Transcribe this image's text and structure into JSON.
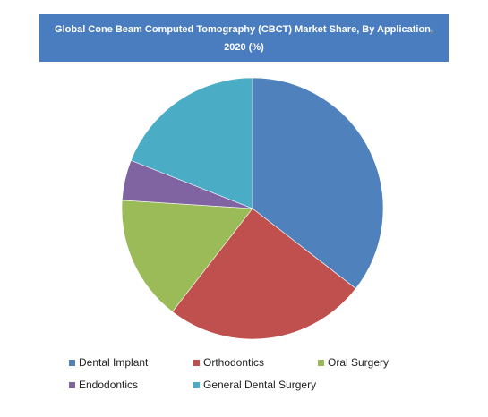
{
  "chart_data": {
    "type": "pie",
    "title": "Global Cone Beam Computed Tomography (CBCT) Market Share, By Application, 2020 (%)",
    "categories": [
      "Dental Implant",
      "Orthodontics",
      "Oral Surgery",
      "Endodontics",
      "General Dental Surgery"
    ],
    "values": [
      35.5,
      25,
      15.5,
      5,
      19
    ],
    "colors": [
      "#4f81bd",
      "#c0504d",
      "#9bbb59",
      "#8064a2",
      "#4bacc6"
    ],
    "start_angle_deg": 0,
    "direction": "clockwise",
    "legend_position": "bottom"
  }
}
